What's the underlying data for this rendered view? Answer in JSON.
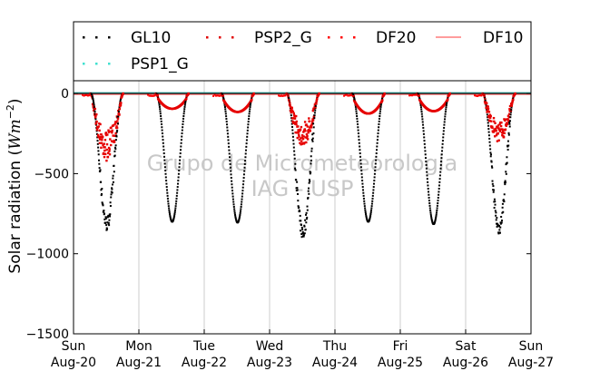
{
  "chart_data": {
    "type": "scatter",
    "title": "",
    "ylabel": "Solar radiation ($Wm^{-2}$)",
    "ylabel_text": "Solar radiation (",
    "ylabel_unit": "Wm",
    "ylabel_exp": "−2",
    "ylabel_close": ")",
    "xlabel": "",
    "ylim": [
      -1500,
      80
    ],
    "xlim": [
      0,
      7
    ],
    "yticks": [
      0,
      -500,
      -1000,
      -1500
    ],
    "ytick_labels": [
      "0",
      "−500",
      "−1000",
      "−1500"
    ],
    "xticks": [
      0,
      1,
      2,
      3,
      4,
      5,
      6,
      7
    ],
    "xtick_labels": [
      [
        "Sun",
        "Aug-20"
      ],
      [
        "Mon",
        "Aug-21"
      ],
      [
        "Tue",
        "Aug-22"
      ],
      [
        "Wed",
        "Aug-23"
      ],
      [
        "Thu",
        "Aug-24"
      ],
      [
        "Fri",
        "Aug-25"
      ],
      [
        "Sat",
        "Aug-26"
      ],
      [
        "Sun",
        "Aug-27"
      ]
    ],
    "grid": "vertical",
    "legend_placement": "top",
    "watermark": [
      "Grupo de Micrometeorologia",
      "IAG - USP"
    ],
    "day_curves": {
      "description_days": [
        0,
        1,
        2,
        3,
        4,
        5,
        6
      ],
      "sunrise_offset": 0.26,
      "sunset_offset": 0.76,
      "global_peak": [
        -815,
        -800,
        -805,
        -870,
        -800,
        -815,
        -840
      ],
      "diffuse_peak": [
        -420,
        -95,
        -115,
        -330,
        -125,
        -110,
        -310
      ]
    },
    "series": [
      {
        "name": "GL10",
        "color": "#000000",
        "style": "dots"
      },
      {
        "name": "PSP2_G",
        "color": "#e00000",
        "style": "dots"
      },
      {
        "name": "DF20",
        "color": "#ff0000",
        "style": "dots"
      },
      {
        "name": "DF10",
        "color": "#ff6060",
        "style": "line"
      },
      {
        "name": "PSP1_G",
        "color": "#40e0d0",
        "style": "dots"
      }
    ]
  }
}
